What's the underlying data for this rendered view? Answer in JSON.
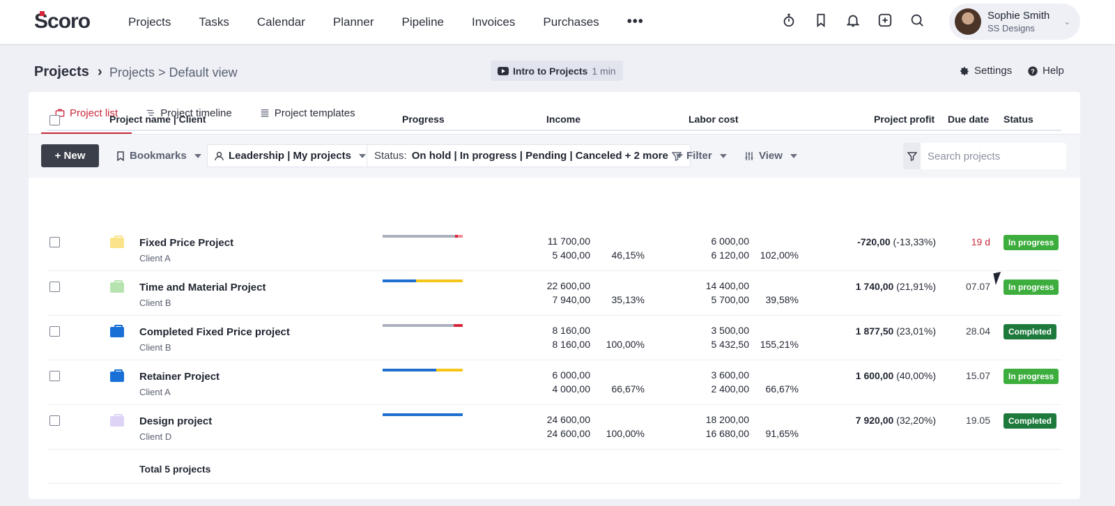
{
  "topbar": {
    "logo": "Scoro",
    "nav": [
      {
        "label": "Projects",
        "active": true
      },
      {
        "label": "Tasks"
      },
      {
        "label": "Calendar"
      },
      {
        "label": "Planner"
      },
      {
        "label": "Pipeline"
      },
      {
        "label": "Invoices"
      },
      {
        "label": "Purchases"
      }
    ],
    "more_label": "•••",
    "icons": [
      "stopwatch-icon",
      "bookmark-icon",
      "bell-icon",
      "plus-square-icon",
      "search-icon"
    ],
    "user": {
      "name": "Sophie Smith",
      "company": "SS Designs"
    }
  },
  "header": {
    "title": "Projects",
    "separator": "›",
    "breadcrumb": "Projects > Default view",
    "intro_label": "Intro to Projects",
    "intro_duration": "1 min",
    "settings_label": "Settings",
    "help_label": "Help"
  },
  "tabs": [
    {
      "label": "Project list",
      "active": true
    },
    {
      "label": "Project timeline"
    },
    {
      "label": "Project templates"
    }
  ],
  "toolbar": {
    "new_label": "+ New",
    "bookmarks_label": "Bookmarks",
    "scope_label": "Leadership | My projects",
    "status_prefix": "Status:",
    "status_value": "On hold | In progress | Pending | Canceled + 2 more",
    "filter_label": "Filter",
    "view_label": "View",
    "search_placeholder": "Search projects"
  },
  "table": {
    "headers": {
      "name": "Project name | Client",
      "progress": "Progress",
      "income": "Income",
      "labor": "Labor cost",
      "profit": "Project profit",
      "due": "Due date",
      "status": "Status"
    },
    "rows": [
      {
        "name": "Fixed Price Project",
        "client": "Client A",
        "folder_color": "#fbe38a",
        "progress": [
          {
            "pct": 90,
            "color": "#aab0bc"
          },
          {
            "pct": 4,
            "color": "#d8253b"
          },
          {
            "pct": 6,
            "color": "#f08a95"
          }
        ],
        "income_planned": "11 700,00",
        "income_actual": "5 400,00",
        "income_pct": "46,15%",
        "labor_planned": "6 000,00",
        "labor_actual": "6 120,00",
        "labor_pct": "102,00%",
        "profit_value": "-720,00",
        "profit_pct": "(-13,33%)",
        "due": "19 d",
        "overdue": true,
        "status": "In progress",
        "status_color": "#3dae3d"
      },
      {
        "name": "Time and Material Project",
        "client": "Client B",
        "folder_color": "#b7e3b0",
        "progress": [
          {
            "pct": 42,
            "color": "#1f6fd0"
          },
          {
            "pct": 58,
            "color": "#f5c518"
          }
        ],
        "income_planned": "22 600,00",
        "income_actual": "7 940,00",
        "income_pct": "35,13%",
        "labor_planned": "14 400,00",
        "labor_actual": "5 700,00",
        "labor_pct": "39,58%",
        "profit_value": "1 740,00",
        "profit_pct": "(21,91%)",
        "due": "07.07",
        "overdue": false,
        "status": "In progress",
        "status_color": "#3dae3d"
      },
      {
        "name": "Completed Fixed Price project",
        "client": "Client B",
        "folder_color": "#1a6fd6",
        "progress": [
          {
            "pct": 89,
            "color": "#aab0bc"
          },
          {
            "pct": 11,
            "color": "#d8253b"
          }
        ],
        "income_planned": "8 160,00",
        "income_actual": "8 160,00",
        "income_pct": "100,00%",
        "labor_planned": "3 500,00",
        "labor_actual": "5 432,50",
        "labor_pct": "155,21%",
        "profit_value": "1 877,50",
        "profit_pct": "(23,01%)",
        "due": "28.04",
        "overdue": false,
        "status": "Completed",
        "status_color": "#1e7a3c"
      },
      {
        "name": "Retainer Project",
        "client": "Client A",
        "folder_color": "#1a6fd6",
        "progress": [
          {
            "pct": 67,
            "color": "#1f6fd0"
          },
          {
            "pct": 33,
            "color": "#f5c518"
          }
        ],
        "income_planned": "6 000,00",
        "income_actual": "4 000,00",
        "income_pct": "66,67%",
        "labor_planned": "3 600,00",
        "labor_actual": "2 400,00",
        "labor_pct": "66,67%",
        "profit_value": "1 600,00",
        "profit_pct": "(40,00%)",
        "due": "15.07",
        "overdue": false,
        "status": "In progress",
        "status_color": "#3dae3d"
      },
      {
        "name": "Design project",
        "client": "Client D",
        "folder_color": "#ddd3f5",
        "progress": [
          {
            "pct": 100,
            "color": "#1f6fd0"
          }
        ],
        "income_planned": "24 600,00",
        "income_actual": "24 600,00",
        "income_pct": "100,00%",
        "labor_planned": "18 200,00",
        "labor_actual": "16 680,00",
        "labor_pct": "91,65%",
        "profit_value": "7 920,00",
        "profit_pct": "(32,20%)",
        "due": "19.05",
        "overdue": false,
        "status": "Completed",
        "status_color": "#1e7a3c"
      }
    ],
    "total_label": "Total 5 projects"
  }
}
